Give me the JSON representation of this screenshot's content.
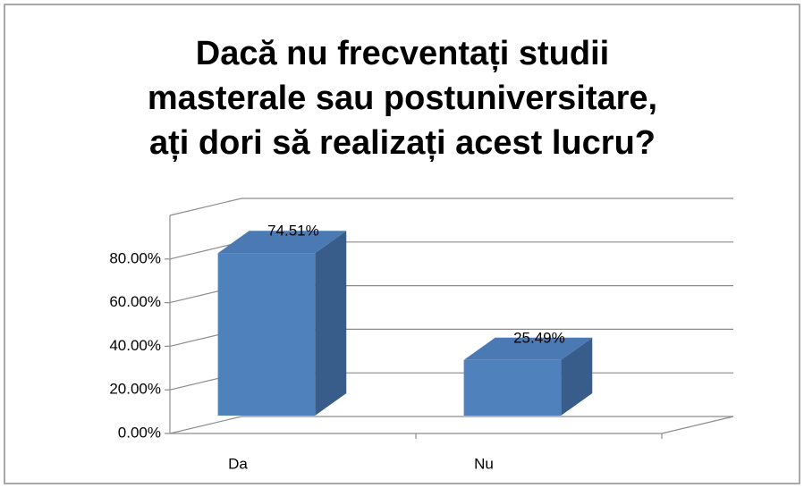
{
  "chart_data": {
    "type": "bar3d",
    "title": [
      "Dacă nu frecventați studii",
      "masterale sau postuniversitare,",
      "ați dori să realizați acest lucru?"
    ],
    "categories": [
      "Da",
      "Nu"
    ],
    "values": [
      74.51,
      25.49
    ],
    "value_labels": [
      "74.51%",
      "25.49%"
    ],
    "color": "#4f81bd",
    "ylim": [
      0,
      100
    ],
    "yticks": [
      {
        "value": 0,
        "label": "0.00%"
      },
      {
        "value": 20,
        "label": "20.00%"
      },
      {
        "value": 40,
        "label": "40.00%"
      },
      {
        "value": 60,
        "label": "60.00%"
      },
      {
        "value": 80,
        "label": "80.00%"
      }
    ],
    "grid": true
  }
}
